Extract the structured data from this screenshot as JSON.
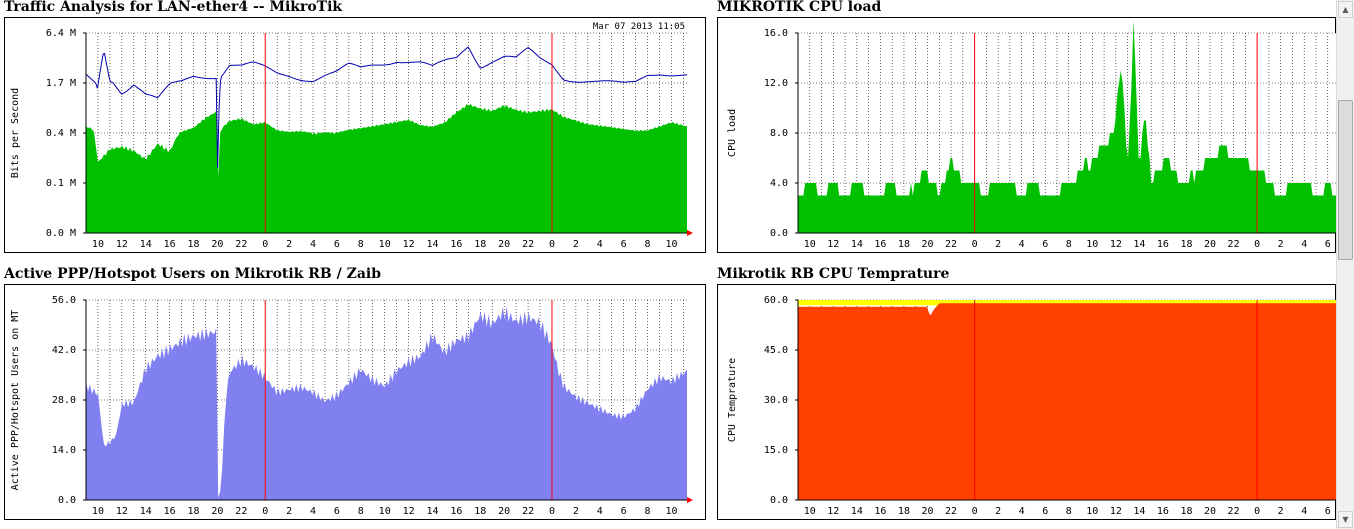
{
  "chart_data": [
    {
      "id": "traffic",
      "type": "area",
      "title": "Traffic Analysis for LAN-ether4 -- MikroTik",
      "timestamp": "Mar 07 2013 11:05",
      "ylabel": "Bits per Second",
      "ytick_labels": [
        "0.0 M",
        "0.1 M",
        "0.4 M",
        "1.7 M",
        "6.4 M"
      ],
      "ytick_values": [
        0,
        0.1,
        0.4,
        1.7,
        6.4
      ],
      "ylog": true,
      "xtick_labels": [
        "10",
        "12",
        "14",
        "16",
        "18",
        "20",
        "22",
        "0",
        "2",
        "4",
        "6",
        "8",
        "10",
        "12",
        "14",
        "16",
        "18",
        "20",
        "22",
        "0",
        "2",
        "4",
        "6",
        "8",
        "10"
      ],
      "xlim": [
        9,
        59.3
      ],
      "midnights": [
        24,
        48
      ],
      "colors": {
        "fill": "#00c000",
        "line": "#0000b0"
      },
      "series": [
        {
          "kind": "area",
          "x": [
            9,
            9.5,
            10,
            11,
            12,
            13,
            14,
            15,
            16,
            17,
            18,
            19,
            19.9,
            20,
            20.3,
            21,
            22,
            23,
            24,
            25,
            26,
            27,
            28,
            29,
            30,
            31,
            32,
            33,
            34,
            35,
            36,
            37,
            38,
            39,
            40,
            41,
            42,
            43,
            44,
            45,
            46,
            47,
            48,
            49,
            50,
            51,
            52,
            53,
            54,
            55,
            56,
            57,
            58,
            59.3
          ],
          "values": [
            0.55,
            0.5,
            0.22,
            0.3,
            0.32,
            0.3,
            0.25,
            0.35,
            0.3,
            0.45,
            0.55,
            0.8,
            0.95,
            0.04,
            0.5,
            0.7,
            0.75,
            0.6,
            0.65,
            0.45,
            0.42,
            0.44,
            0.4,
            0.42,
            0.42,
            0.5,
            0.55,
            0.6,
            0.65,
            0.7,
            0.75,
            0.6,
            0.55,
            0.65,
            0.9,
            1.1,
            1.0,
            0.95,
            1.1,
            1.0,
            0.95,
            1.0,
            1.05,
            0.85,
            0.75,
            0.65,
            0.6,
            0.55,
            0.5,
            0.45,
            0.45,
            0.55,
            0.65,
            0.55
          ]
        },
        {
          "kind": "line",
          "x": [
            9,
            10,
            10.5,
            11,
            12,
            13,
            14,
            15,
            16,
            17,
            18,
            19,
            19.9,
            20,
            20.3,
            21,
            22,
            23,
            24,
            25,
            26,
            27,
            28,
            29,
            30,
            31,
            32,
            33,
            34,
            35,
            36,
            37,
            38,
            39,
            40,
            41,
            42,
            43,
            44,
            45,
            46,
            47,
            48,
            49,
            50,
            51,
            52,
            53,
            54,
            55,
            56,
            57,
            58,
            59.3
          ],
          "values": [
            2.3,
            1.5,
            5.0,
            2.0,
            1.6,
            1.8,
            1.4,
            1.2,
            1.5,
            1.8,
            2.4,
            2.4,
            2.4,
            0.07,
            2.5,
            3.5,
            3.2,
            3.3,
            3.0,
            2.6,
            2.5,
            2.2,
            2.0,
            2.4,
            2.6,
            3.2,
            3.0,
            3.5,
            3.8,
            4.1,
            3.8,
            3.5,
            3.0,
            3.5,
            4.0,
            5.5,
            3.5,
            4.0,
            4.2,
            3.8,
            4.5,
            3.8,
            3.5,
            2.2,
            2.0,
            1.9,
            1.8,
            1.7,
            1.6,
            1.8,
            2.6,
            2.8,
            2.6,
            2.4
          ]
        }
      ]
    },
    {
      "id": "cpu",
      "type": "area",
      "title": "MIKROTIK CPU load",
      "ylabel": "CPU load",
      "ytick_labels": [
        "0.0",
        "4.0",
        "8.0",
        "12.0",
        "16.0"
      ],
      "ytick_values": [
        0,
        4,
        8,
        12,
        16
      ],
      "xtick_labels": [
        "10",
        "12",
        "14",
        "16",
        "18",
        "20",
        "22",
        "0",
        "2",
        "4",
        "6",
        "8",
        "10",
        "12",
        "14",
        "16",
        "18",
        "20",
        "22",
        "0",
        "2",
        "4",
        "6"
      ],
      "xlim": [
        9,
        54.7
      ],
      "midnights": [
        24,
        48
      ],
      "colors": {
        "fill": "#00c000"
      },
      "series": [
        {
          "kind": "area",
          "x": [
            9,
            10,
            11,
            12,
            13,
            14,
            15,
            16,
            17,
            18,
            19,
            20,
            21,
            22,
            23,
            24,
            25,
            26,
            27,
            28,
            29,
            30,
            31,
            32,
            33,
            34,
            35,
            36,
            36.5,
            37,
            37.5,
            38,
            38.5,
            39,
            40,
            41,
            42,
            43,
            44,
            45,
            46,
            47,
            48,
            49,
            50,
            51,
            52,
            53,
            54,
            54.7
          ],
          "values": [
            3,
            4,
            3,
            4,
            3,
            4,
            3,
            3,
            4,
            3,
            4,
            5,
            3,
            6,
            4,
            4,
            3,
            4,
            4,
            3,
            4,
            3,
            3,
            4,
            5,
            6,
            7,
            9,
            14,
            5,
            16,
            5,
            10,
            4,
            6,
            5,
            4,
            5,
            6,
            7,
            6,
            6,
            5,
            4,
            3,
            4,
            4,
            3,
            4,
            3
          ]
        }
      ]
    },
    {
      "id": "users",
      "type": "area",
      "title": "Active PPP/Hotspot Users on Mikrotik RB / Zaib",
      "ylabel": "Active PPP/Hotspot Users on MT",
      "ytick_labels": [
        "0.0",
        "14.0",
        "28.0",
        "42.0",
        "56.0"
      ],
      "ytick_values": [
        0,
        14,
        28,
        42,
        56
      ],
      "xtick_labels": [
        "10",
        "12",
        "14",
        "16",
        "18",
        "20",
        "22",
        "0",
        "2",
        "4",
        "6",
        "8",
        "10",
        "12",
        "14",
        "16",
        "18",
        "20",
        "22",
        "0",
        "2",
        "4",
        "6",
        "8",
        "10"
      ],
      "xlim": [
        9,
        59.3
      ],
      "midnights": [
        24,
        48
      ],
      "colors": {
        "fill": "#8080f0"
      },
      "series": [
        {
          "kind": "area",
          "x": [
            9,
            10,
            10.5,
            11,
            11.5,
            12,
            13,
            14,
            15,
            16,
            17,
            18,
            18.5,
            19,
            19.5,
            19.9,
            20,
            20.3,
            20.7,
            21,
            22,
            23,
            24,
            25,
            26,
            27,
            28,
            29,
            30,
            31,
            32,
            33,
            34,
            35,
            36,
            37,
            38,
            39,
            40,
            41,
            42,
            43,
            44,
            45,
            46,
            47,
            48,
            48.5,
            49,
            50,
            51,
            52,
            53,
            54,
            55,
            56,
            57,
            58,
            59.3
          ],
          "values": [
            31,
            29,
            15,
            16,
            18,
            27,
            28,
            38,
            42,
            44,
            46,
            47,
            47,
            47,
            47,
            47,
            0,
            3,
            28,
            35,
            38,
            36,
            33,
            29,
            30,
            31,
            30,
            28,
            30,
            34,
            38,
            35,
            33,
            37,
            39,
            40,
            45,
            40,
            43,
            44,
            50,
            48,
            52,
            50,
            52,
            51,
            45,
            38,
            33,
            30,
            28,
            26,
            24,
            23,
            25,
            30,
            33,
            32,
            35
          ]
        }
      ]
    },
    {
      "id": "temp",
      "type": "area",
      "title": "Mikrotik RB CPU Temprature",
      "ylabel": "CPU Temprature",
      "ytick_labels": [
        "0.0",
        "15.0",
        "30.0",
        "45.0",
        "60.0"
      ],
      "ytick_values": [
        0,
        15,
        30,
        45,
        60
      ],
      "xtick_labels": [
        "10",
        "12",
        "14",
        "16",
        "18",
        "20",
        "22",
        "0",
        "2",
        "4",
        "6",
        "8",
        "10",
        "12",
        "14",
        "16",
        "18",
        "20",
        "22",
        "0",
        "2",
        "4",
        "6"
      ],
      "xlim": [
        9,
        54.7
      ],
      "midnights": [
        24,
        48
      ],
      "colors": {
        "fill": "#ff4000",
        "cap": "#ffff00"
      },
      "series": [
        {
          "kind": "area",
          "x": [
            9,
            10,
            15,
            19,
            20,
            20.2,
            20.5,
            21,
            22,
            30,
            40,
            50,
            54.7
          ],
          "values": [
            58,
            58,
            58,
            58,
            58,
            55,
            57,
            59,
            59,
            59,
            59,
            59,
            59
          ]
        }
      ]
    }
  ]
}
